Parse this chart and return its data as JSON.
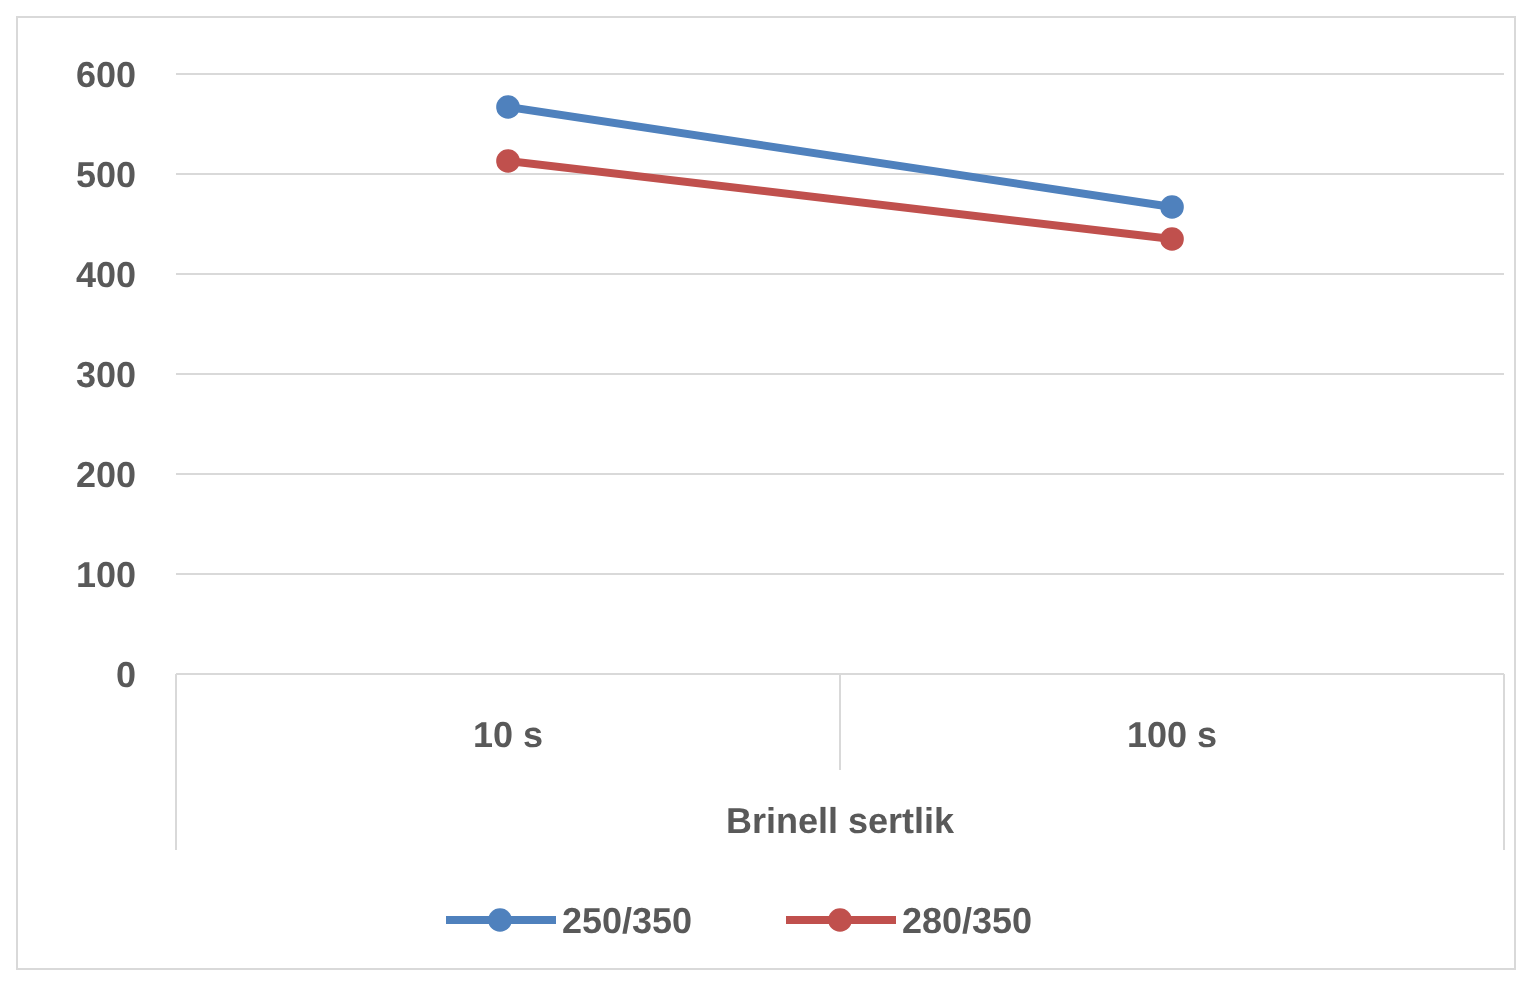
{
  "chart_data": {
    "type": "line",
    "xlabel": "Brinell sertlik",
    "categories": [
      "10 s",
      "100 s"
    ],
    "series": [
      {
        "name": "250/350",
        "color": "#4f81bd",
        "values": [
          567,
          467
        ]
      },
      {
        "name": "280/350",
        "color": "#c0504d",
        "values": [
          513,
          435
        ]
      }
    ],
    "ylim": [
      0,
      600
    ],
    "yticks": [
      0,
      100,
      200,
      300,
      400,
      500,
      600
    ],
    "grid": "y",
    "legend": "bottom",
    "marker": "circle",
    "line_style": "solid"
  }
}
